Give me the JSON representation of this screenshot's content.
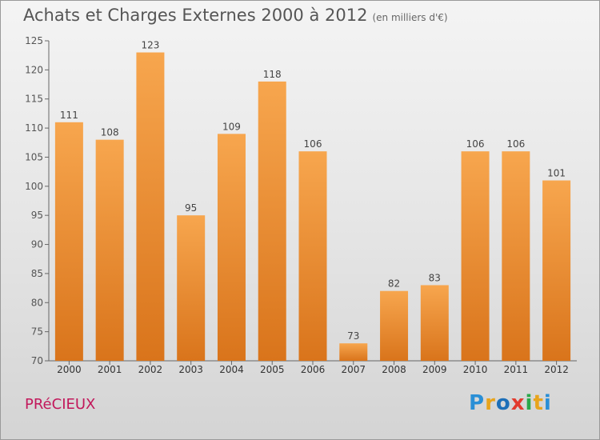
{
  "header": {
    "title": "Achats et Charges Externes 2000 à 2012",
    "subtitle": "(en milliers d'€)"
  },
  "footer": {
    "commune": "PRéCIEUX",
    "logo_letters": [
      "P",
      "r",
      "o",
      "x",
      "i",
      "t",
      "i"
    ]
  },
  "colors": {
    "bar_top": "#f7a64e",
    "bar_bottom": "#d9741b",
    "text": "#555555",
    "commune": "#c2185b"
  },
  "chart_data": {
    "type": "bar",
    "categories": [
      "2000",
      "2001",
      "2002",
      "2003",
      "2004",
      "2005",
      "2006",
      "2007",
      "2008",
      "2009",
      "2010",
      "2011",
      "2012"
    ],
    "values": [
      111,
      108,
      123,
      95,
      109,
      118,
      106,
      73,
      82,
      83,
      106,
      106,
      101
    ],
    "data_labels": [
      "111",
      "108",
      "123",
      "95",
      "109",
      "118",
      "106",
      "73",
      "82",
      "83",
      "106",
      "106",
      "101"
    ],
    "ylim": [
      70,
      125
    ],
    "yticks": [
      70,
      75,
      80,
      85,
      90,
      95,
      100,
      105,
      110,
      115,
      120,
      125
    ],
    "grid": false,
    "legend": "none"
  }
}
